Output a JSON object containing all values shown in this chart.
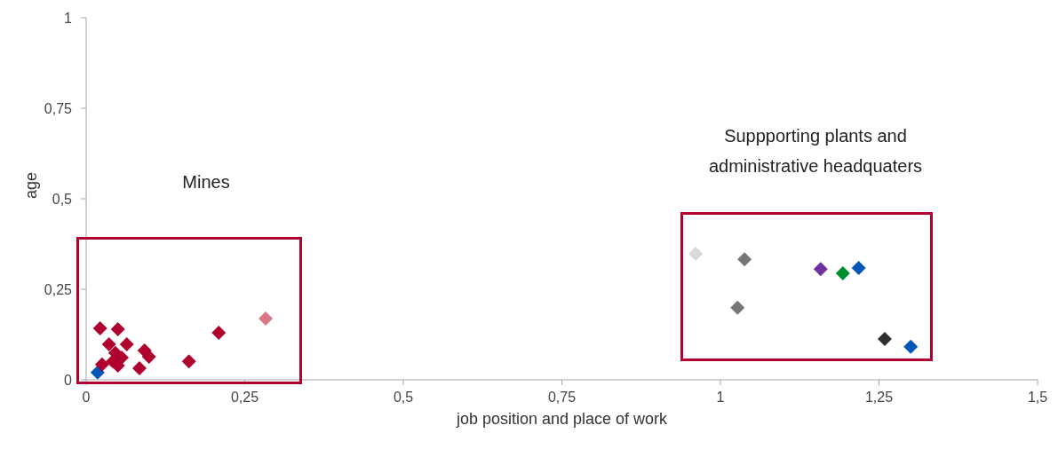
{
  "chart_data": {
    "type": "scatter",
    "xlabel": "job position and place of work",
    "ylabel": "age",
    "x": [
      0.022,
      0.05,
      0.036,
      0.064,
      0.092,
      0.099,
      0.042,
      0.056,
      0.05,
      0.084,
      0.162,
      0.209,
      0.283,
      0.018,
      0.025,
      0.046,
      0.961,
      1.038,
      1.027,
      1.158,
      1.193,
      1.218,
      1.259,
      1.3
    ],
    "values": [
      0.142,
      0.14,
      0.098,
      0.098,
      0.081,
      0.064,
      0.051,
      0.061,
      0.039,
      0.032,
      0.051,
      0.13,
      0.169,
      0.02,
      0.042,
      0.074,
      0.348,
      0.333,
      0.199,
      0.306,
      0.294,
      0.309,
      0.113,
      0.091
    ],
    "colors": [
      "#b0002e",
      "#b0002e",
      "#b0002e",
      "#b0002e",
      "#b0002e",
      "#b0002e",
      "#b0002e",
      "#b0002e",
      "#b0002e",
      "#b0002e",
      "#b0002e",
      "#b0002e",
      "#d97785",
      "#0057b7",
      "#b0002e",
      "#b0002e",
      "#d9d9d9",
      "#767676",
      "#767676",
      "#7030a0",
      "#008c2e",
      "#0057b7",
      "#303030",
      "#0057b7"
    ],
    "marker": "diamond",
    "grid": false,
    "legend": false,
    "xlim": [
      0,
      1.5
    ],
    "xticks": [
      0,
      {
        "value": 0.25,
        "label": "0,25"
      },
      {
        "value": 0.5,
        "label": "0,5"
      },
      {
        "value": 0.75,
        "label": "0,75"
      },
      1,
      {
        "value": 1.25,
        "label": "1,25"
      },
      {
        "value": 1.5,
        "label": "1,5"
      }
    ],
    "ylim": [
      0,
      1
    ],
    "yticks": [
      0,
      {
        "value": 0.25,
        "label": "0,25"
      },
      {
        "value": 0.5,
        "label": "0,5"
      },
      {
        "value": 0.75,
        "label": "0,75"
      },
      1
    ],
    "annotations": [
      "Mines",
      "Suppporting plants and administrative headquaters"
    ]
  }
}
